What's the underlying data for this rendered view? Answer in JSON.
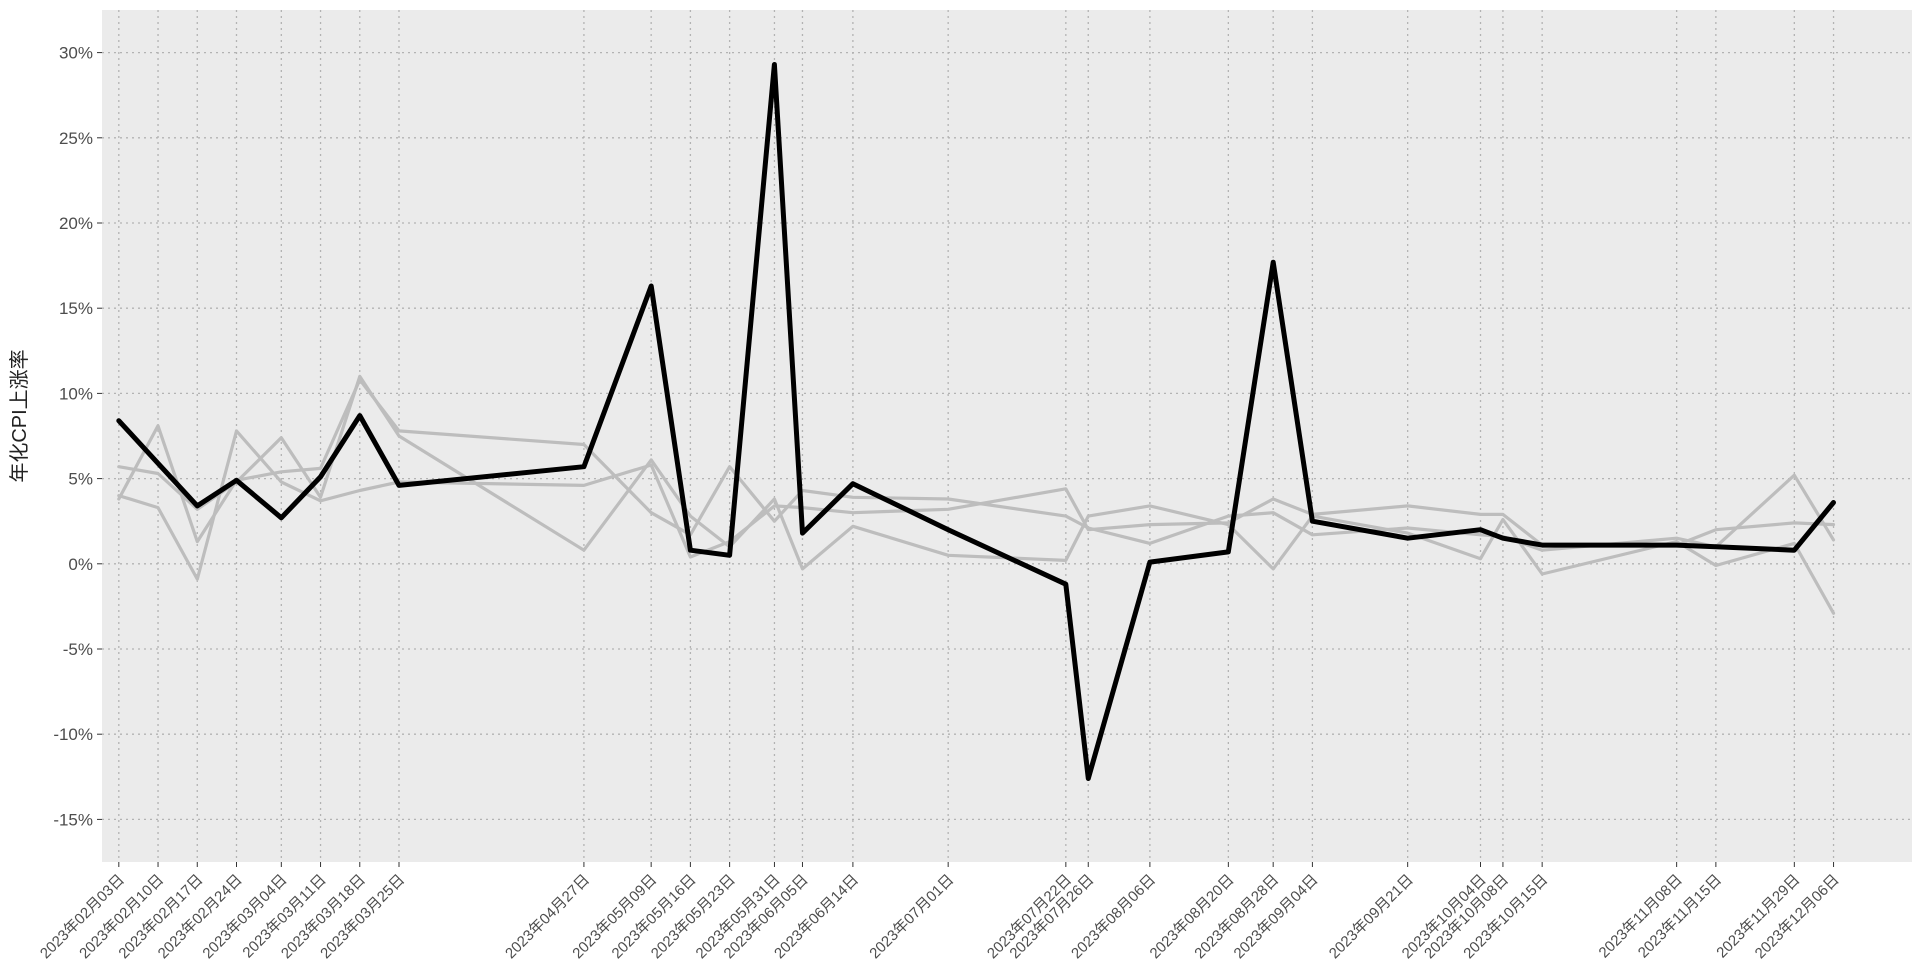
{
  "chart_data": {
    "type": "line",
    "title": "",
    "xlabel": "",
    "ylabel": "年化CPI上涨率",
    "ylim": [
      -17.5,
      32.5
    ],
    "y_ticks": [
      -15,
      -10,
      -5,
      0,
      5,
      10,
      15,
      20,
      25,
      30
    ],
    "y_tick_labels": [
      "-15%",
      "-10%",
      "-5%",
      "0%",
      "5%",
      "10%",
      "15%",
      "20%",
      "25%",
      "30%"
    ],
    "x_range": [
      "2023-01-31",
      "2023-12-20"
    ],
    "x_tick_dates": [
      "2023-02-03",
      "2023-02-10",
      "2023-02-17",
      "2023-02-24",
      "2023-03-04",
      "2023-03-11",
      "2023-03-18",
      "2023-03-25",
      "2023-04-27",
      "2023-05-09",
      "2023-05-16",
      "2023-05-23",
      "2023-05-31",
      "2023-06-05",
      "2023-06-14",
      "2023-07-01",
      "2023-07-22",
      "2023-07-26",
      "2023-08-06",
      "2023-08-20",
      "2023-08-28",
      "2023-09-04",
      "2023-09-21",
      "2023-10-04",
      "2023-10-08",
      "2023-10-15",
      "2023-11-08",
      "2023-11-15",
      "2023-11-29",
      "2023-12-06"
    ],
    "x_tick_labels": [
      "2023年02月03日",
      "2023年02月10日",
      "2023年02月17日",
      "2023年02月24日",
      "2023年03月04日",
      "2023年03月11日",
      "2023年03月18日",
      "2023年03月25日",
      "2023年04月27日",
      "2023年05月09日",
      "2023年05月16日",
      "2023年05月23日",
      "2023年05月31日",
      "2023年06月05日",
      "2023年06月14日",
      "2023年07月01日",
      "2023年07月22日",
      "2023年07月26日",
      "2023年08月06日",
      "2023年08月20日",
      "2023年08月28日",
      "2023年09月04日",
      "2023年09月21日",
      "2023年10月04日",
      "2023年10月08日",
      "2023年10月15日",
      "2023年11月08日",
      "2023年11月15日",
      "2023年11月29日",
      "2023年12月06日"
    ],
    "grid": true,
    "legend": "none",
    "colors": {
      "panel": "#ebebeb",
      "grid": "#b3b3b3",
      "highlight": "#000000",
      "background_series": "#bdbdbd"
    },
    "series": [
      {
        "highlight": false,
        "x": [
          "2023-02-03",
          "2023-02-10",
          "2023-02-17",
          "2023-02-24",
          "2023-03-04",
          "2023-03-11",
          "2023-03-18",
          "2023-03-25",
          "2023-04-27",
          "2023-05-09",
          "2023-05-16",
          "2023-05-23",
          "2023-05-31",
          "2023-06-05",
          "2023-06-14",
          "2023-07-01",
          "2023-07-22",
          "2023-07-26",
          "2023-08-06",
          "2023-08-20",
          "2023-08-28",
          "2023-09-04",
          "2023-09-21",
          "2023-10-04",
          "2023-10-08",
          "2023-10-15",
          "2023-11-08",
          "2023-11-15",
          "2023-11-29",
          "2023-12-06"
        ],
        "values": [
          4.0,
          3.3,
          -0.9,
          7.8,
          4.8,
          3.7,
          4.3,
          4.8,
          4.6,
          5.8,
          0.4,
          1.3,
          3.4,
          3.3,
          3.0,
          3.2,
          4.4,
          2.0,
          2.3,
          2.4,
          3.8,
          2.9,
          3.4,
          2.9,
          2.9,
          1.1,
          1.1,
          2.0,
          2.4,
          2.3
        ]
      },
      {
        "highlight": false,
        "x": [
          "2023-02-03",
          "2023-02-10",
          "2023-02-17",
          "2023-02-24",
          "2023-03-04",
          "2023-03-11",
          "2023-03-18",
          "2023-03-25",
          "2023-04-27",
          "2023-05-09",
          "2023-05-16",
          "2023-05-23",
          "2023-05-31",
          "2023-06-05",
          "2023-06-14",
          "2023-07-01",
          "2023-07-22",
          "2023-07-26",
          "2023-08-06",
          "2023-08-20",
          "2023-08-28",
          "2023-09-04",
          "2023-09-21",
          "2023-10-04",
          "2023-10-08",
          "2023-10-15",
          "2023-11-08",
          "2023-11-15",
          "2023-11-29",
          "2023-12-06"
        ],
        "values": [
          5.7,
          5.3,
          3.2,
          4.8,
          7.4,
          3.9,
          11.0,
          7.5,
          0.8,
          6.1,
          2.8,
          1.0,
          3.8,
          -0.3,
          2.2,
          0.5,
          0.2,
          2.8,
          3.4,
          2.3,
          -0.3,
          2.8,
          1.8,
          0.3,
          2.6,
          -0.6,
          1.3,
          -0.1,
          1.2,
          -2.9
        ]
      },
      {
        "highlight": false,
        "x": [
          "2023-02-03",
          "2023-02-10",
          "2023-02-17",
          "2023-02-24",
          "2023-03-04",
          "2023-03-11",
          "2023-03-18",
          "2023-03-25",
          "2023-04-27",
          "2023-05-09",
          "2023-05-16",
          "2023-05-23",
          "2023-05-31",
          "2023-06-05",
          "2023-06-14",
          "2023-07-01",
          "2023-07-22",
          "2023-07-26",
          "2023-08-06",
          "2023-08-20",
          "2023-08-28",
          "2023-09-04",
          "2023-09-21",
          "2023-10-04",
          "2023-10-08",
          "2023-10-15",
          "2023-11-08",
          "2023-11-15",
          "2023-11-29",
          "2023-12-06"
        ],
        "values": [
          3.8,
          8.1,
          1.3,
          4.9,
          5.4,
          5.6,
          10.8,
          7.8,
          7.0,
          3.0,
          1.7,
          5.7,
          2.5,
          4.3,
          3.9,
          3.8,
          2.8,
          2.1,
          1.2,
          2.8,
          3.0,
          1.7,
          2.1,
          1.7,
          1.6,
          0.8,
          1.5,
          1.0,
          5.2,
          1.4
        ]
      },
      {
        "highlight": true,
        "x": [
          "2023-02-03",
          "2023-02-10",
          "2023-02-17",
          "2023-02-24",
          "2023-03-04",
          "2023-03-11",
          "2023-03-18",
          "2023-03-25",
          "2023-04-27",
          "2023-05-09",
          "2023-05-16",
          "2023-05-23",
          "2023-05-31",
          "2023-06-05",
          "2023-06-14",
          "2023-07-01",
          "2023-07-22",
          "2023-07-26",
          "2023-08-06",
          "2023-08-20",
          "2023-08-28",
          "2023-09-04",
          "2023-09-21",
          "2023-10-04",
          "2023-10-08",
          "2023-10-15",
          "2023-11-08",
          "2023-11-15",
          "2023-11-29",
          "2023-12-06"
        ],
        "values": [
          8.4,
          5.9,
          3.4,
          4.9,
          2.7,
          5.1,
          8.7,
          4.6,
          5.7,
          16.3,
          0.8,
          0.5,
          29.3,
          1.8,
          4.7,
          2.0,
          -1.2,
          -12.6,
          0.1,
          0.7,
          17.7,
          2.5,
          1.5,
          2.0,
          1.5,
          1.1,
          1.1,
          1.0,
          0.8,
          3.6
        ]
      }
    ]
  }
}
